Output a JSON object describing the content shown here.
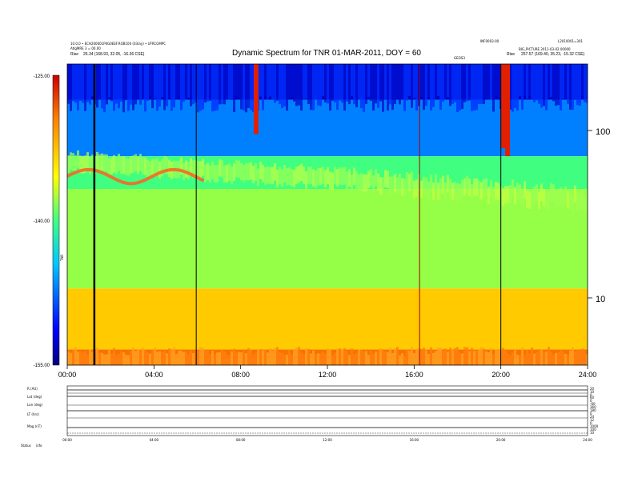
{
  "chart_data": [
    {
      "type": "heatmap",
      "title": "Dynamic Spectrum for TNR 01-MAR-2011, DOY = 60",
      "header_left": [
        "10.0.0 • ECH200001P4G0EEF.ROB100 (03/ay) • UFRCGMPC",
        "AtlgMRE 3 = 00.00",
        "Rise",
        "26.34 (168.93, 32.05, -16.36 CSE)"
      ],
      "header_right": [
        "INF0003-00",
        "L2010001=301",
        "BIG_PICTURE 2011-03-02 00000",
        "Rise",
        "257.57 (169.40, 35.23, -15.32 CSE)"
      ],
      "marker_label": "GEOS3",
      "x_ticks": [
        "00:00",
        "04:00",
        "08:00",
        "12:00",
        "16:00",
        "20:00",
        "24:00"
      ],
      "x_range_hours": [
        0,
        24
      ],
      "y_ticks_right": [
        "100",
        "10"
      ],
      "y_scale": "log",
      "y_range_khz": [
        4,
        300
      ],
      "colorbar": {
        "ticks": [
          "-125.00",
          "-140.00",
          "-155.00"
        ],
        "range": [
          -155,
          -125
        ],
        "label": "TNR",
        "colors": [
          "#00007f",
          "#0000ff",
          "#00c8ff",
          "#40ff80",
          "#ffff00",
          "#ff8000",
          "#cc0000"
        ]
      },
      "vertical_lines_hours": [
        1.25,
        5.95,
        16.25,
        20.0
      ],
      "bands": [
        {
          "name": "dark-blue-top",
          "freq_khz": [
            180,
            300
          ],
          "level_dbm": -127
        },
        {
          "name": "cyan",
          "freq_khz": [
            80,
            180
          ],
          "level_dbm": -133
        },
        {
          "name": "yellow-green",
          "freq_khz": [
            50,
            80
          ],
          "level_dbm": -140
        },
        {
          "name": "green",
          "freq_khz": [
            12,
            50
          ],
          "level_dbm": -142
        },
        {
          "name": "yellow",
          "freq_khz": [
            5,
            12
          ],
          "level_dbm": -147
        },
        {
          "name": "orange-bottom",
          "freq_khz": [
            4,
            5
          ],
          "level_dbm": -151
        }
      ]
    },
    {
      "type": "line",
      "panel": "ephemeris",
      "row_labels": [
        "R (AU)",
        "Lat (deg)",
        "Lon (deg)",
        "LT (hrs)",
        "Mag (nT)",
        "Status"
      ],
      "right_ticks": [
        [
          "20",
          "10",
          "0"
        ],
        [
          "60",
          "0",
          "-60"
        ],
        [
          "360",
          "180",
          "0"
        ],
        [
          "24",
          "12",
          "0"
        ],
        [
          "1000",
          "100",
          "10"
        ]
      ],
      "status": "info",
      "x_ticks": [
        "00:00",
        "04:00",
        "08:00",
        "12:00",
        "16:00",
        "20:00",
        "24:00"
      ]
    }
  ]
}
